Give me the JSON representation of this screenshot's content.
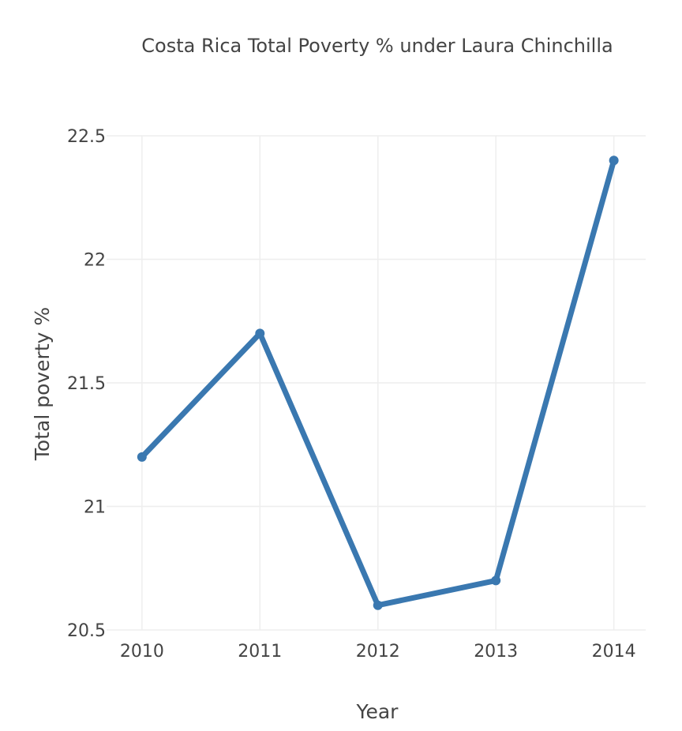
{
  "chart_data": {
    "type": "line",
    "title": "Costa Rica Total Poverty % under Laura Chinchilla",
    "xlabel": "Year",
    "ylabel": "Total poverty %",
    "x": [
      2010,
      2011,
      2012,
      2013,
      2014
    ],
    "series": [
      {
        "values": [
          21.2,
          21.7,
          20.6,
          20.7,
          22.4
        ]
      }
    ],
    "xlim": [
      2009.7,
      2014.27
    ],
    "ylim": [
      20.5,
      22.5
    ],
    "xticks": [
      "2010",
      "2011",
      "2012",
      "2013",
      "2014"
    ],
    "yticks": [
      "20.5",
      "21",
      "21.5",
      "22",
      "22.5"
    ],
    "grid": true,
    "colors": {
      "line": "#3a78b0",
      "grid": "#eeeeee",
      "text": "#444444"
    }
  }
}
